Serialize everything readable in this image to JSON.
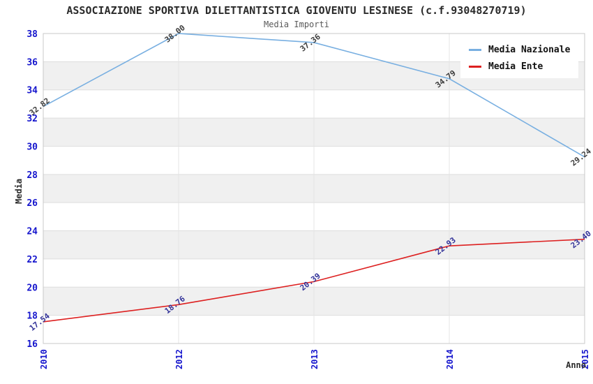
{
  "header": {
    "title": "ASSOCIAZIONE SPORTIVA DILETTANTISTICA GIOVENTU LESINESE (c.f.93048270719)",
    "subtitle": "Media Importi"
  },
  "legend": {
    "items": [
      {
        "label": "Media Nazionale",
        "color": "#78afe1"
      },
      {
        "label": "Media Ente",
        "color": "#dd2020"
      }
    ]
  },
  "chart_data": {
    "type": "line",
    "title": "ASSOCIAZIONE SPORTIVA DILETTANTISTICA GIOVENTU LESINESE (c.f.93048270719)",
    "subtitle": "Media Importi",
    "x_categories": [
      "2010",
      "2012",
      "2013",
      "2014",
      "2015"
    ],
    "series": [
      {
        "name": "Media Nazionale",
        "color": "#78afe1",
        "label_color": "#3c3c3c",
        "values": [
          32.82,
          38.0,
          37.36,
          34.79,
          29.24
        ]
      },
      {
        "name": "Media Ente",
        "color": "#dd2020",
        "label_color": "#333399",
        "values": [
          17.54,
          18.76,
          20.39,
          22.93,
          23.4
        ]
      }
    ],
    "xlabel": "Anno",
    "ylabel": "Media",
    "ylim": [
      16,
      38
    ],
    "ytick_step": 2,
    "grid": true,
    "legend_position": "top-right",
    "band_colors": [
      "#ffffff",
      "#f0f0f0"
    ],
    "tick_label_color": "#1515cd",
    "gridline_color": "#dedede",
    "border_color": "#c8c8c8"
  }
}
